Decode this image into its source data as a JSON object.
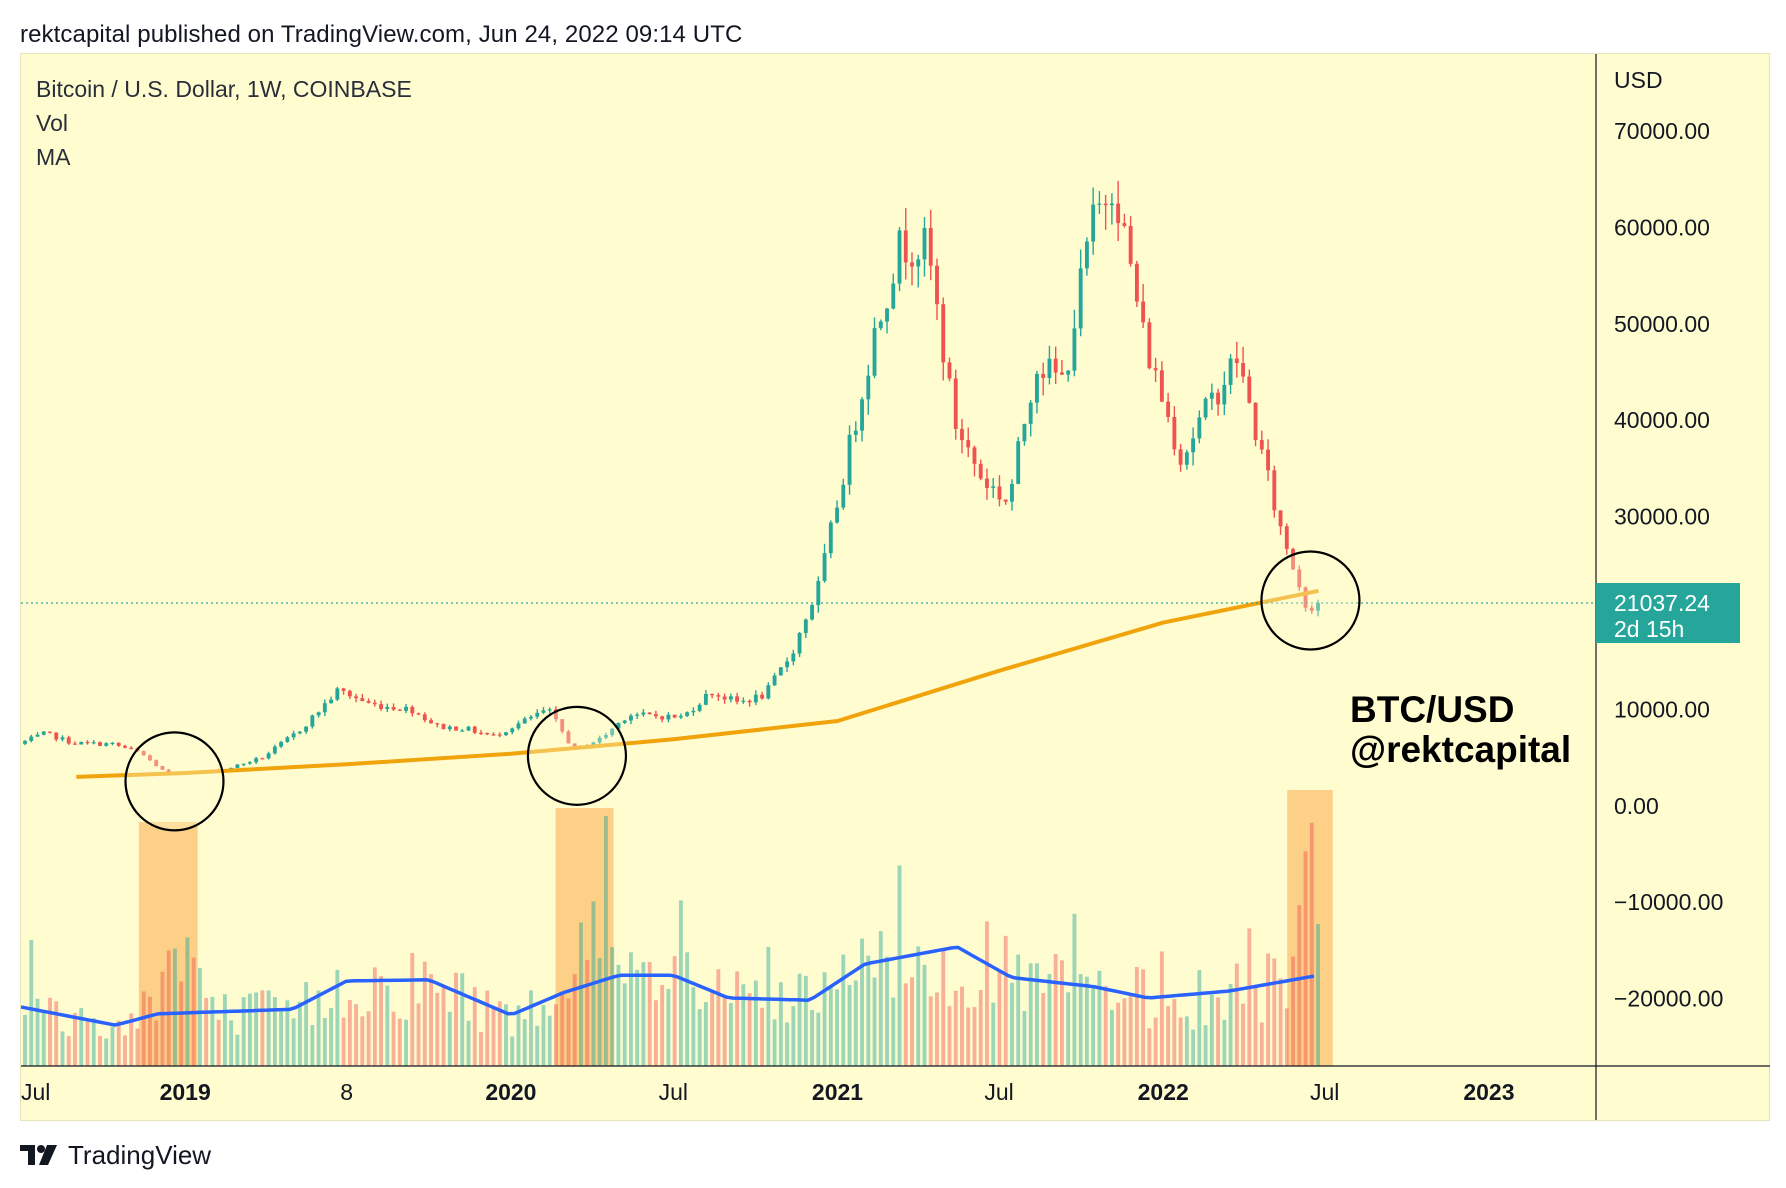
{
  "publish_line": "rektcapital published on TradingView.com, Jun 24, 2022 09:14 UTC",
  "legend": {
    "symbol": "Bitcoin / U.S. Dollar, 1W, COINBASE",
    "volume": "Vol",
    "ma": "MA"
  },
  "brand": {
    "logo_icon": "tradingview-logo-icon",
    "name": "TradingView"
  },
  "annotation": {
    "line1": "BTC/USD",
    "line2": "@rektcapital"
  },
  "price_badge": {
    "price": "21037.24",
    "countdown": "2d 15h",
    "color": "#26a69a"
  },
  "colors": {
    "background": "#fffdd0",
    "up": "#26a69a",
    "down": "#ef5350",
    "ma_line": "#f0a30a",
    "volume_ma": "#2962ff",
    "highlight": "#fbc879"
  },
  "chart_data": {
    "type": "candlestick",
    "timeframe": "1W",
    "y_axis": {
      "unit": "USD",
      "ticks": [
        "70000.00",
        "60000.00",
        "50000.00",
        "40000.00",
        "30000.00",
        "10000.00",
        "0.00",
        "−10000.00",
        "−20000.00"
      ],
      "range": [
        -27000,
        78000
      ]
    },
    "x_axis": {
      "labels": [
        {
          "label": "Jul",
          "date": "2018-07-01",
          "bold": false
        },
        {
          "label": "2019",
          "date": "2019-01-01",
          "bold": true
        },
        {
          "label": "8",
          "date": "2019-07-01",
          "bold": false
        },
        {
          "label": "2020",
          "date": "2020-01-01",
          "bold": true
        },
        {
          "label": "Jul",
          "date": "2020-07-01",
          "bold": false
        },
        {
          "label": "2021",
          "date": "2021-01-01",
          "bold": true
        },
        {
          "label": "Jul",
          "date": "2021-07-01",
          "bold": false
        },
        {
          "label": "2022",
          "date": "2022-01-01",
          "bold": true
        },
        {
          "label": "Jul",
          "date": "2022-07-01",
          "bold": false
        },
        {
          "label": "2023",
          "date": "2023-01-01",
          "bold": true
        }
      ],
      "range": [
        "2018-07-01",
        "2023-05-01"
      ]
    },
    "price_anchors": [
      [
        "2018-07-01",
        6400
      ],
      [
        "2018-08-01",
        7500
      ],
      [
        "2018-09-01",
        6500
      ],
      [
        "2018-10-15",
        6400
      ],
      [
        "2018-11-15",
        5500
      ],
      [
        "2018-12-15",
        3300
      ],
      [
        "2019-02-15",
        3700
      ],
      [
        "2019-04-01",
        5000
      ],
      [
        "2019-05-15",
        8000
      ],
      [
        "2019-06-25",
        12000
      ],
      [
        "2019-08-01",
        10500
      ],
      [
        "2019-09-15",
        10000
      ],
      [
        "2019-10-15",
        8200
      ],
      [
        "2019-11-15",
        8000
      ],
      [
        "2019-12-15",
        7200
      ],
      [
        "2020-02-15",
        10000
      ],
      [
        "2020-03-15",
        5800
      ],
      [
        "2020-04-15",
        7000
      ],
      [
        "2020-05-15",
        9500
      ],
      [
        "2020-06-15",
        9300
      ],
      [
        "2020-07-15",
        9200
      ],
      [
        "2020-08-15",
        11800
      ],
      [
        "2020-09-15",
        10700
      ],
      [
        "2020-10-15",
        11500
      ],
      [
        "2020-11-15",
        16000
      ],
      [
        "2020-12-15",
        23000
      ],
      [
        "2021-01-15",
        36000
      ],
      [
        "2021-02-15",
        49000
      ],
      [
        "2021-03-15",
        58000
      ],
      [
        "2021-04-15",
        58000
      ],
      [
        "2021-05-15",
        40000
      ],
      [
        "2021-06-15",
        34000
      ],
      [
        "2021-07-15",
        31500
      ],
      [
        "2021-08-15",
        46000
      ],
      [
        "2021-09-15",
        44000
      ],
      [
        "2021-10-15",
        60000
      ],
      [
        "2021-11-10",
        65000
      ],
      [
        "2021-12-15",
        48000
      ],
      [
        "2022-01-25",
        36000
      ],
      [
        "2022-02-15",
        40000
      ],
      [
        "2022-03-28",
        46500
      ],
      [
        "2022-04-15",
        40000
      ],
      [
        "2022-05-15",
        29000
      ],
      [
        "2022-06-15",
        20500
      ],
      [
        "2022-06-24",
        21037
      ]
    ],
    "ma_200w": [
      [
        "2018-09-01",
        3000
      ],
      [
        "2019-01-01",
        3400
      ],
      [
        "2019-07-01",
        4300
      ],
      [
        "2020-01-01",
        5400
      ],
      [
        "2020-07-01",
        6900
      ],
      [
        "2021-01-01",
        8800
      ],
      [
        "2021-07-01",
        14000
      ],
      [
        "2022-01-01",
        19000
      ],
      [
        "2022-06-24",
        22300
      ]
    ],
    "volume_ma_shape": [
      [
        "2018-07-01",
        0.52
      ],
      [
        "2018-10-15",
        0.36
      ],
      [
        "2018-12-01",
        0.46
      ],
      [
        "2019-05-01",
        0.5
      ],
      [
        "2019-07-01",
        0.75
      ],
      [
        "2019-10-01",
        0.76
      ],
      [
        "2020-01-01",
        0.45
      ],
      [
        "2020-03-01",
        0.65
      ],
      [
        "2020-05-01",
        0.8
      ],
      [
        "2020-07-01",
        0.8
      ],
      [
        "2020-09-01",
        0.6
      ],
      [
        "2020-12-01",
        0.58
      ],
      [
        "2021-02-01",
        0.9
      ],
      [
        "2021-05-15",
        1.05
      ],
      [
        "2021-07-15",
        0.78
      ],
      [
        "2021-10-15",
        0.7
      ],
      [
        "2021-12-15",
        0.6
      ],
      [
        "2022-03-15",
        0.66
      ],
      [
        "2022-06-24",
        0.8
      ]
    ],
    "highlight_ranges": [
      [
        "2018-11-10",
        "2019-01-15"
      ],
      [
        "2020-02-20",
        "2020-04-25"
      ],
      [
        "2022-05-20",
        "2022-07-10"
      ]
    ],
    "circles": [
      "2018-12-20",
      "2020-03-15",
      "2022-06-15"
    ],
    "current_price": 21037.24
  }
}
